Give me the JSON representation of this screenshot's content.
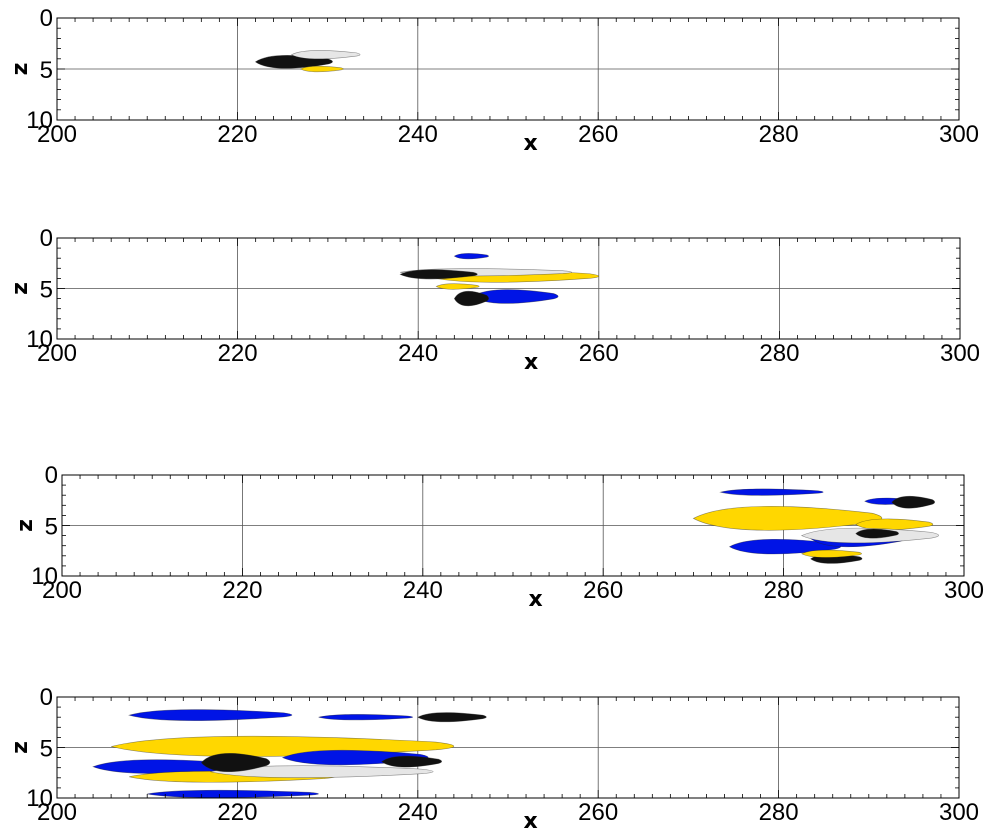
{
  "chart_data": [
    {
      "type": "scatter",
      "xlabel": "x",
      "ylabel": "z",
      "xlim": [
        200,
        300
      ],
      "ylim": [
        0,
        10
      ],
      "y_inverted": true,
      "xticks": [
        "200",
        "220",
        "240",
        "260",
        "280",
        "300"
      ],
      "yticks": [
        "0",
        "5",
        "10"
      ],
      "grid": true,
      "blobs": [
        {
          "color": "#111111",
          "x0": 222,
          "x1": 231,
          "z": 4.3,
          "dz": 1.4
        },
        {
          "color": "#e6e6e6",
          "x0": 226,
          "x1": 234,
          "z": 3.6,
          "dz": 0.9
        },
        {
          "color": "#ffd700",
          "x0": 227,
          "x1": 232,
          "z": 5.0,
          "dz": 0.6
        }
      ]
    },
    {
      "type": "scatter",
      "xlabel": "x",
      "ylabel": "z",
      "xlim": [
        200,
        300
      ],
      "ylim": [
        0,
        10
      ],
      "y_inverted": true,
      "xticks": [
        "200",
        "220",
        "240",
        "260",
        "280",
        "300"
      ],
      "yticks": [
        "0",
        "5",
        "10"
      ],
      "grid": true,
      "blobs": [
        {
          "color": "#ffd700",
          "x0": 241,
          "x1": 261,
          "z": 3.8,
          "dz": 1.3
        },
        {
          "color": "#0014e6",
          "x0": 246,
          "x1": 256,
          "z": 5.8,
          "dz": 1.5
        },
        {
          "color": "#0014e6",
          "x0": 244,
          "x1": 248,
          "z": 1.8,
          "dz": 0.6
        },
        {
          "color": "#e6e6e6",
          "x0": 238,
          "x1": 258,
          "z": 3.4,
          "dz": 0.8
        },
        {
          "color": "#111111",
          "x0": 238,
          "x1": 247,
          "z": 3.6,
          "dz": 1.0
        },
        {
          "color": "#111111",
          "x0": 244,
          "x1": 248,
          "z": 6.0,
          "dz": 1.6
        },
        {
          "color": "#ffd700",
          "x0": 242,
          "x1": 247,
          "z": 4.8,
          "dz": 0.6
        }
      ]
    },
    {
      "type": "scatter",
      "xlabel": "x",
      "ylabel": "z",
      "xlim": [
        200,
        300
      ],
      "ylim": [
        0,
        10
      ],
      "y_inverted": true,
      "xticks": [
        "200",
        "220",
        "240",
        "260",
        "280",
        "300"
      ],
      "yticks": [
        "0",
        "5",
        "10"
      ],
      "grid": true,
      "blobs": [
        {
          "color": "#0014e6",
          "x0": 273,
          "x1": 285,
          "z": 1.7,
          "dz": 0.7
        },
        {
          "color": "#0014e6",
          "x0": 289,
          "x1": 295,
          "z": 2.6,
          "dz": 0.7
        },
        {
          "color": "#111111",
          "x0": 292,
          "x1": 297,
          "z": 2.7,
          "dz": 1.3
        },
        {
          "color": "#ffd700",
          "x0": 270,
          "x1": 292,
          "z": 4.3,
          "dz": 2.6
        },
        {
          "color": "#ffd700",
          "x0": 288,
          "x1": 297,
          "z": 4.9,
          "dz": 1.2
        },
        {
          "color": "#0014e6",
          "x0": 274,
          "x1": 287,
          "z": 7.1,
          "dz": 1.6
        },
        {
          "color": "#0014e6",
          "x0": 283,
          "x1": 294,
          "z": 6.3,
          "dz": 1.8
        },
        {
          "color": "#e6e6e6",
          "x0": 282,
          "x1": 298,
          "z": 6.0,
          "dz": 1.6
        },
        {
          "color": "#111111",
          "x0": 283,
          "x1": 289,
          "z": 8.3,
          "dz": 1.0
        },
        {
          "color": "#111111",
          "x0": 288,
          "x1": 293,
          "z": 5.8,
          "dz": 1.0
        },
        {
          "color": "#ffd700",
          "x0": 282,
          "x1": 289,
          "z": 7.8,
          "dz": 0.8
        }
      ]
    },
    {
      "type": "scatter",
      "xlabel": "x",
      "ylabel": "z",
      "xlim": [
        200,
        300
      ],
      "ylim": [
        0,
        10
      ],
      "y_inverted": true,
      "xticks": [
        "200",
        "220",
        "240",
        "260",
        "280",
        "300"
      ],
      "yticks": [
        "0",
        "5",
        "10"
      ],
      "grid": true,
      "blobs": [
        {
          "color": "#0014e6",
          "x0": 208,
          "x1": 227,
          "z": 1.8,
          "dz": 1.2
        },
        {
          "color": "#0014e6",
          "x0": 229,
          "x1": 240,
          "z": 2.0,
          "dz": 0.6
        },
        {
          "color": "#111111",
          "x0": 240,
          "x1": 248,
          "z": 2.0,
          "dz": 1.0
        },
        {
          "color": "#ffd700",
          "x0": 206,
          "x1": 246,
          "z": 4.9,
          "dz": 2.2
        },
        {
          "color": "#0014e6",
          "x0": 204,
          "x1": 222,
          "z": 6.9,
          "dz": 1.5
        },
        {
          "color": "#0014e6",
          "x0": 225,
          "x1": 242,
          "z": 6.0,
          "dz": 1.6
        },
        {
          "color": "#ffd700",
          "x0": 208,
          "x1": 232,
          "z": 7.9,
          "dz": 1.2
        },
        {
          "color": "#e6e6e6",
          "x0": 217,
          "x1": 243,
          "z": 7.4,
          "dz": 1.3
        },
        {
          "color": "#111111",
          "x0": 216,
          "x1": 224,
          "z": 6.5,
          "dz": 2.0
        },
        {
          "color": "#111111",
          "x0": 236,
          "x1": 243,
          "z": 6.4,
          "dz": 1.2
        },
        {
          "color": "#0014e6",
          "x0": 210,
          "x1": 230,
          "z": 9.6,
          "dz": 0.8
        }
      ]
    }
  ]
}
